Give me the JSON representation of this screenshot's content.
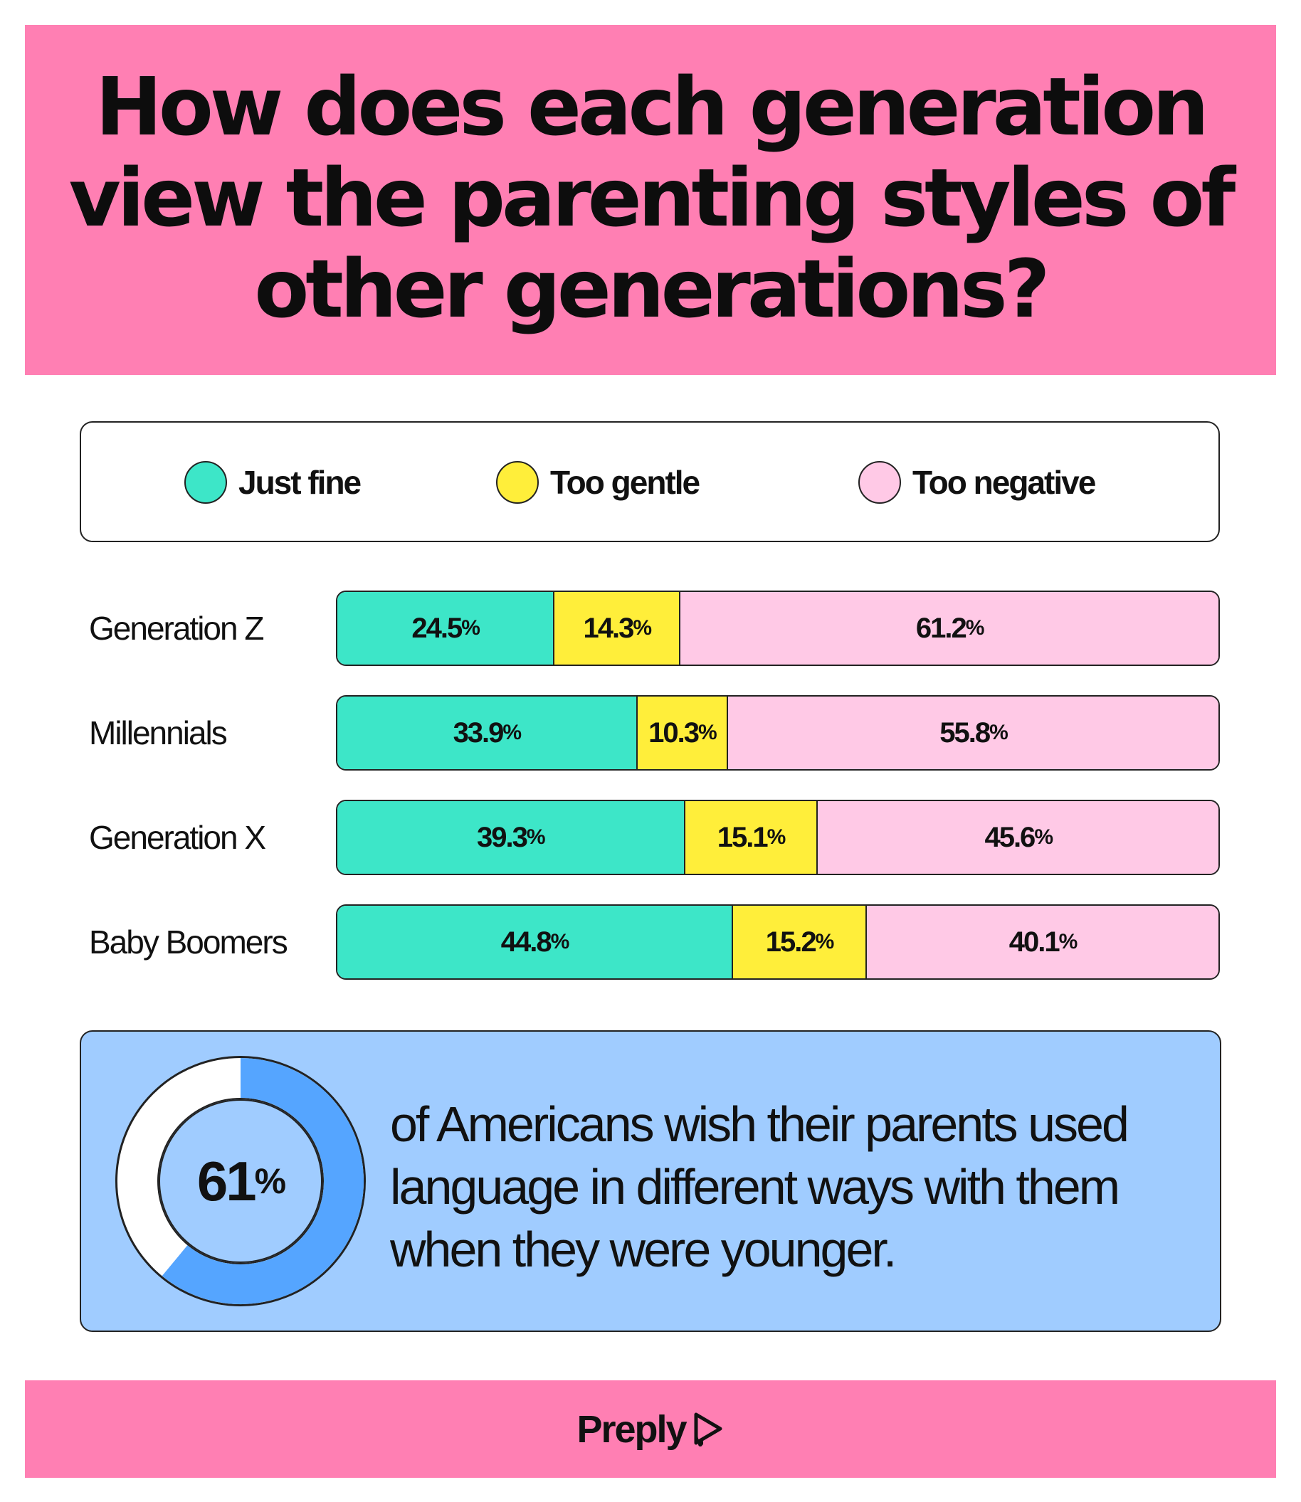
{
  "header": {
    "title": "How does each generation\nview the parenting styles of\nother generations?"
  },
  "legend": [
    {
      "label": "Just fine",
      "color": "#3de6c8"
    },
    {
      "label": "Too gentle",
      "color": "#ffee3a"
    },
    {
      "label": "Too negative",
      "color": "#ffc9e6"
    }
  ],
  "chart_data": {
    "type": "bar",
    "orientation": "horizontal-stacked",
    "categories": [
      "Generation Z",
      "Millennials",
      "Generation X",
      "Baby Boomers"
    ],
    "series": [
      {
        "name": "Just fine",
        "values": [
          24.5,
          33.9,
          39.3,
          44.8
        ]
      },
      {
        "name": "Too gentle",
        "values": [
          14.3,
          10.3,
          15.1,
          15.2
        ]
      },
      {
        "name": "Too negative",
        "values": [
          61.2,
          55.8,
          45.6,
          40.1
        ]
      }
    ],
    "unit": "%",
    "legend": "top"
  },
  "callout": {
    "value": 61,
    "value_label": "61",
    "unit": "%",
    "text": "of Americans wish their parents used language in different ways with them when they were younger.",
    "fill_color": "#55a5ff",
    "rest_color": "#ffffff"
  },
  "footer": {
    "brand": "Preply",
    "icon": "preply-logo-icon"
  }
}
